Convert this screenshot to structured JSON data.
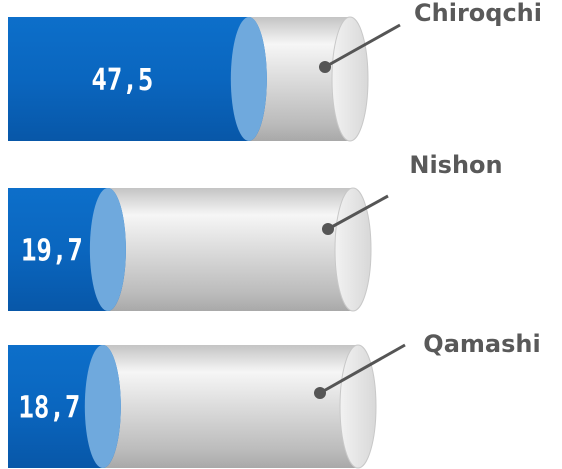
{
  "chart_data": {
    "type": "bar",
    "orientation": "horizontal",
    "style": "3d-cylinder",
    "categories": [
      "Chiroqchi",
      "Nishon",
      "Qamashi"
    ],
    "values": [
      47.5,
      19.7,
      18.7
    ],
    "value_labels": [
      "47,5",
      "19,7",
      "18,7"
    ],
    "title": "",
    "xlabel": "",
    "ylabel": "",
    "legend": "none",
    "grid": false,
    "colors": {
      "fill": "#0a6bc6",
      "fill_end": "#6fa9dd",
      "track": "#d2d2d2",
      "track_light": "#f4f4f4",
      "leader": "#555555",
      "label": "#595959"
    }
  }
}
